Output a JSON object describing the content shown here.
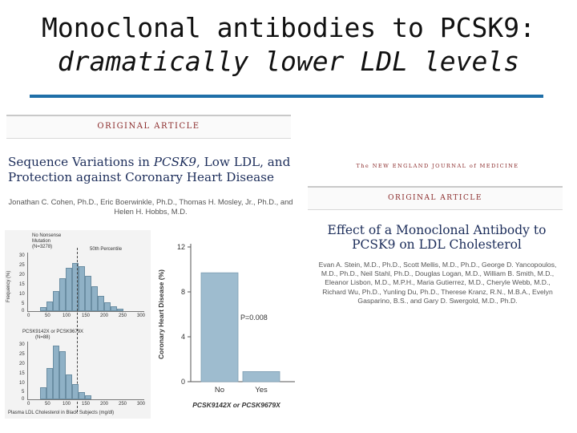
{
  "slide": {
    "title_line1": "Monoclonal antibodies to PCSK9:",
    "title_line2": "dramatically lower LDL levels"
  },
  "article_left": {
    "section": "ORIGINAL ARTICLE",
    "headline_part1": "Sequence Variations in ",
    "headline_gene": "PCSK9",
    "headline_part2": ", Low LDL, and Protection against Coronary Heart Disease",
    "authors": "Jonathan C. Cohen, Ph.D., Eric Boerwinkle, Ph.D., Thomas H. Mosley, Jr., Ph.D., and Helen H. Hobbs, M.D."
  },
  "histogram_figure": {
    "panel_top_label_1": "No Nonsense",
    "panel_top_label_2": "Mutation",
    "panel_top_n": "(N=3278)",
    "percentile_note": "50th Percentile",
    "panel_bottom_label": "PCSK9142X or PCSK9679X",
    "panel_bottom_n": "(N=88)",
    "ylabel": "Frequency (%)",
    "xlabel": "Plasma LDL Cholesterol in Black Subjects (mg/dl)",
    "top_yticks": [
      "30",
      "25",
      "20",
      "15",
      "10",
      "5",
      "0"
    ],
    "bottom_yticks": [
      "30",
      "25",
      "20",
      "15",
      "10",
      "5",
      "0"
    ],
    "xticks": [
      "0",
      "50",
      "100",
      "150",
      "200",
      "250",
      "300"
    ]
  },
  "chart_data": {
    "type": "bar",
    "categories": [
      "No",
      "Yes"
    ],
    "values": [
      9.7,
      0.9
    ],
    "ylabel": "Coronary Heart Disease (%)",
    "xlabel": "PCSK9142X or PCSK9679X",
    "ylim": [
      0,
      12
    ],
    "yticks": [
      "0",
      "4",
      "8",
      "12"
    ],
    "annotation": "P=0.008",
    "bar_color": "#9ebccf"
  },
  "article_right": {
    "masthead": "The NEW ENGLAND JOURNAL of MEDICINE",
    "section": "ORIGINAL ARTICLE",
    "headline": "Effect of a Monoclonal Antibody to PCSK9 on LDL Cholesterol",
    "authors": "Evan A. Stein, M.D., Ph.D., Scott Mellis, M.D., Ph.D., George D. Yancopoulos, M.D., Ph.D., Neil Stahl, Ph.D., Douglas Logan, M.D., William B. Smith, M.D., Eleanor Lisbon, M.D., M.P.H., Maria Gutierrez, M.D., Cheryle Webb, M.D., Richard Wu, Ph.D., Yunling Du, Ph.D., Therese Kranz, R.N., M.B.A., Evelyn Gasparino, B.S., and Gary D. Swergold, M.D., Ph.D."
  }
}
